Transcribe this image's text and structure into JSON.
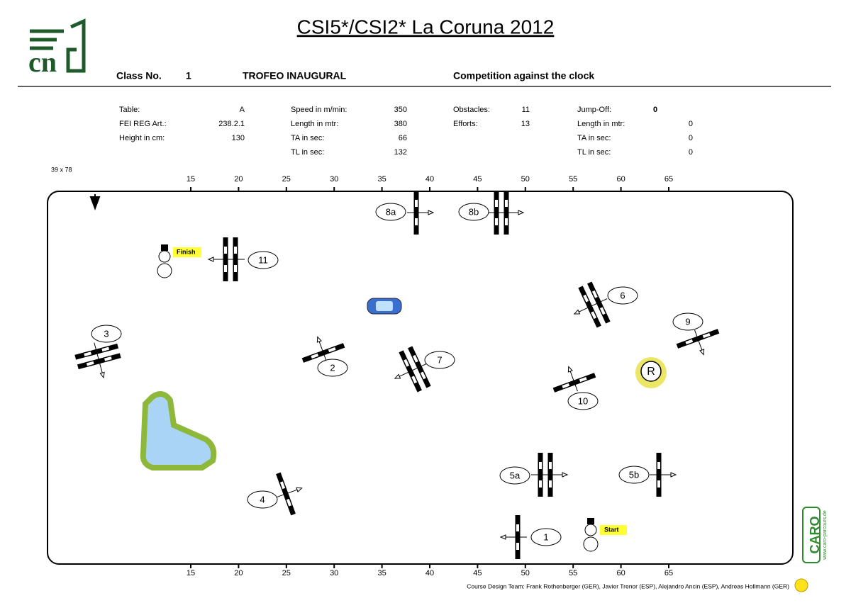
{
  "header": {
    "title": "CSI5*/CSI2* La Coruna 2012",
    "logo": "cn",
    "class_label": "Class No.",
    "class_no": "1",
    "class_name": "TROFEO INAUGURAL",
    "competition": "Competition against the clock"
  },
  "info": {
    "columns": [
      [
        [
          "Table:",
          "A"
        ],
        [
          "FEI REG Art.:",
          "238.2.1"
        ],
        [
          "Height in cm:",
          "130"
        ]
      ],
      [
        [
          "Speed in m/min:",
          "350"
        ],
        [
          "Length in mtr:",
          "380"
        ],
        [
          "TA in sec:",
          "66"
        ],
        [
          "TL in sec:",
          "132"
        ]
      ],
      [
        [
          "Obstacles:",
          "11"
        ],
        [
          "Efforts:",
          "13"
        ]
      ],
      [
        [
          "Jump-Off:",
          "0"
        ],
        [
          "Length in mtr:",
          "0"
        ],
        [
          "TA in sec:",
          "0"
        ],
        [
          "TL in sec:",
          "0"
        ]
      ]
    ]
  },
  "arena": {
    "size": "39 x 78",
    "ruler": [
      15,
      20,
      25,
      30,
      35,
      40,
      45,
      50,
      55,
      60,
      65
    ]
  },
  "obstacles": [
    "8a",
    "8b",
    "11",
    "6",
    "3",
    "9",
    "2",
    "7",
    "10",
    "5a",
    "5b",
    "4",
    "1"
  ],
  "markers": {
    "r": "R",
    "finish": "Finish",
    "start": "Start"
  },
  "footer": {
    "credits": "Course Design Team:   Frank Rothenberger (GER), Javier Trenor (ESP), Alejandro Ancin (ESP), Andreas Hollmann (GER)",
    "brand": "CARO",
    "url": "www.caro-parcours.de"
  }
}
